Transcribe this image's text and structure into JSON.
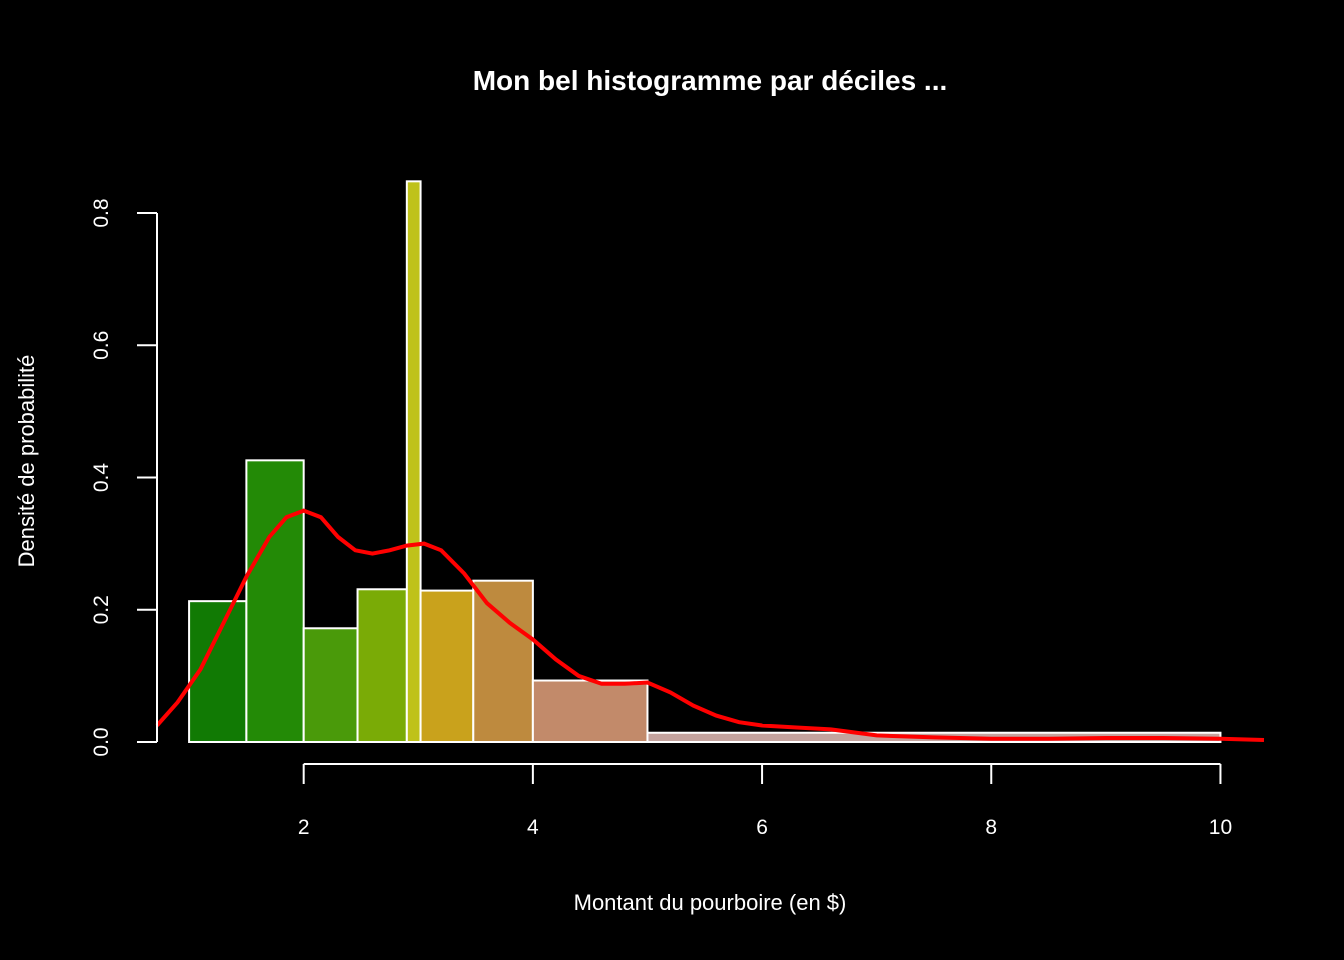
{
  "chart_data": {
    "type": "bar",
    "title": "Mon bel histogramme par déciles ...",
    "xlabel": "Montant du pourboire (en $)",
    "ylabel": "Densité de probabilité",
    "xlim": [
      0.72,
      10.38
    ],
    "ylim": [
      0,
      0.85
    ],
    "x_ticks": [
      2,
      4,
      6,
      8,
      10
    ],
    "y_ticks": [
      0.0,
      0.2,
      0.4,
      0.6,
      0.8
    ],
    "x_tick_labels": [
      "2",
      "4",
      "6",
      "8",
      "10"
    ],
    "y_tick_labels": [
      "0.0",
      "0.2",
      "0.4",
      "0.6",
      "0.8"
    ],
    "grid": false,
    "bins": [
      {
        "start": 1.0,
        "end": 1.5,
        "density": 0.213,
        "color": "#117a04"
      },
      {
        "start": 1.5,
        "end": 2.0,
        "density": 0.426,
        "color": "#238a06"
      },
      {
        "start": 2.0,
        "end": 2.47,
        "density": 0.172,
        "color": "#4a9a0a"
      },
      {
        "start": 2.47,
        "end": 2.9,
        "density": 0.231,
        "color": "#7aab06"
      },
      {
        "start": 2.9,
        "end": 3.02,
        "density": 0.848,
        "color": "#bfc21a"
      },
      {
        "start": 3.02,
        "end": 3.48,
        "density": 0.229,
        "color": "#c9a21c"
      },
      {
        "start": 3.48,
        "end": 4.0,
        "density": 0.244,
        "color": "#be8a3e"
      },
      {
        "start": 4.0,
        "end": 5.0,
        "density": 0.093,
        "color": "#c28a6a"
      },
      {
        "start": 5.0,
        "end": 10.0,
        "density": 0.014,
        "color": "#c4a39e"
      }
    ],
    "density_curve": {
      "color": "#ff0000",
      "x": [
        0.72,
        0.9,
        1.1,
        1.3,
        1.5,
        1.7,
        1.85,
        2.0,
        2.15,
        2.3,
        2.45,
        2.6,
        2.75,
        2.9,
        3.05,
        3.2,
        3.4,
        3.6,
        3.8,
        4.0,
        4.2,
        4.4,
        4.6,
        4.8,
        5.0,
        5.2,
        5.4,
        5.6,
        5.8,
        6.0,
        6.3,
        6.6,
        7.0,
        7.5,
        8.0,
        8.5,
        9.0,
        9.5,
        10.0,
        10.38
      ],
      "y": [
        0.025,
        0.06,
        0.11,
        0.18,
        0.25,
        0.31,
        0.34,
        0.35,
        0.34,
        0.31,
        0.29,
        0.285,
        0.29,
        0.297,
        0.3,
        0.29,
        0.255,
        0.21,
        0.18,
        0.155,
        0.125,
        0.1,
        0.088,
        0.088,
        0.09,
        0.075,
        0.055,
        0.04,
        0.03,
        0.025,
        0.022,
        0.019,
        0.01,
        0.007,
        0.005,
        0.005,
        0.006,
        0.006,
        0.005,
        0.003
      ]
    }
  }
}
